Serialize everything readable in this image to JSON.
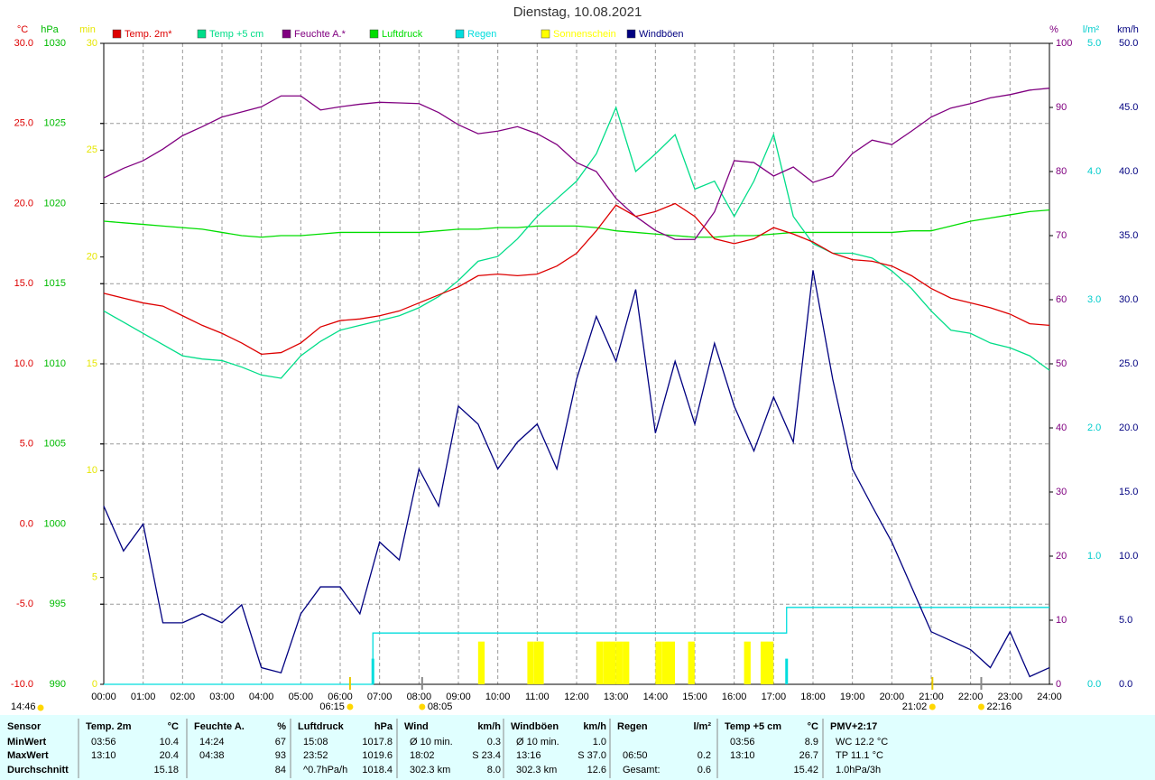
{
  "chart_data": {
    "type": "line",
    "title": "Dienstag, 10.08.2021",
    "xlim": [
      0,
      24
    ],
    "xticks": [
      {
        "value": 0,
        "label": "00:00"
      },
      {
        "value": 1,
        "label": "01:00"
      },
      {
        "value": 2,
        "label": "02:00"
      },
      {
        "value": 3,
        "label": "03:00"
      },
      {
        "value": 4,
        "label": "04:00"
      },
      {
        "value": 5,
        "label": "05:00"
      },
      {
        "value": 6,
        "label": "06:00"
      },
      {
        "value": 7,
        "label": "07:00"
      },
      {
        "value": 8,
        "label": "08:00"
      },
      {
        "value": 9,
        "label": "09:00"
      },
      {
        "value": 10,
        "label": "10:00"
      },
      {
        "value": 11,
        "label": "11:00"
      },
      {
        "value": 12,
        "label": "12:00"
      },
      {
        "value": 13,
        "label": "13:00"
      },
      {
        "value": 14,
        "label": "14:00"
      },
      {
        "value": 15,
        "label": "15:00"
      },
      {
        "value": 16,
        "label": "16:00"
      },
      {
        "value": 17,
        "label": "17:00"
      },
      {
        "value": 18,
        "label": "18:00"
      },
      {
        "value": 19,
        "label": "19:00"
      },
      {
        "value": 20,
        "label": "20:00"
      },
      {
        "value": 21,
        "label": "21:00"
      },
      {
        "value": 22,
        "label": "22:00"
      },
      {
        "value": 23,
        "label": "23:00"
      },
      {
        "value": 24,
        "label": "24:00"
      }
    ],
    "axes": [
      {
        "unit": "°C",
        "side": "left",
        "color": "#dd0000",
        "grid": true,
        "lim": [
          -10,
          30
        ],
        "ticks": [
          {
            "value": -10,
            "label": "-10.0"
          },
          {
            "value": -5,
            "label": "-5.0"
          },
          {
            "value": 0,
            "label": "0.0"
          },
          {
            "value": 5,
            "label": "5.0"
          },
          {
            "value": 10,
            "label": "10.0"
          },
          {
            "value": 15,
            "label": "15.0"
          },
          {
            "value": 20,
            "label": "20.0"
          },
          {
            "value": 25,
            "label": "25.0"
          },
          {
            "value": 30,
            "label": "30.0"
          }
        ]
      },
      {
        "unit": "hPa",
        "side": "left",
        "color": "#00bb00",
        "lim": [
          990,
          1030
        ],
        "ticks": [
          990,
          995,
          1000,
          1005,
          1010,
          1015,
          1020,
          1025,
          1030
        ]
      },
      {
        "unit": "min",
        "side": "left",
        "color": "#e6e600",
        "lim": [
          0,
          30
        ],
        "ticks": [
          0,
          5,
          10,
          15,
          20,
          25,
          30
        ]
      },
      {
        "unit": "%",
        "side": "right",
        "color": "#800080",
        "lim": [
          0,
          100
        ],
        "ticks": [
          0,
          10,
          20,
          30,
          40,
          50,
          60,
          70,
          80,
          90,
          100
        ]
      },
      {
        "unit": "l/m²",
        "side": "right",
        "color": "#00cccc",
        "lim": [
          0,
          5
        ],
        "ticks": [
          {
            "value": 0,
            "label": "0.0"
          },
          {
            "value": 1,
            "label": "1.0"
          },
          {
            "value": 2,
            "label": "2.0"
          },
          {
            "value": 3,
            "label": "3.0"
          },
          {
            "value": 4,
            "label": "4.0"
          },
          {
            "value": 5,
            "label": "5.0"
          }
        ]
      },
      {
        "unit": "km/h",
        "side": "right",
        "color": "#000080",
        "lim": [
          0,
          50
        ],
        "ticks": [
          {
            "value": 0,
            "label": "0.0"
          },
          {
            "value": 5,
            "label": "5.0"
          },
          {
            "value": 10,
            "label": "10.0"
          },
          {
            "value": 15,
            "label": "15.0"
          },
          {
            "value": 20,
            "label": "20.0"
          },
          {
            "value": 25,
            "label": "25.0"
          },
          {
            "value": 30,
            "label": "30.0"
          },
          {
            "value": 35,
            "label": "35.0"
          },
          {
            "value": 40,
            "label": "40.0"
          },
          {
            "value": 45,
            "label": "45.0"
          },
          {
            "value": 50,
            "label": "50.0"
          }
        ]
      }
    ],
    "x": [
      0,
      0.5,
      1,
      1.5,
      2,
      2.5,
      3,
      3.5,
      4,
      4.5,
      5,
      5.5,
      6,
      6.5,
      7,
      7.5,
      8,
      8.5,
      9,
      9.5,
      10,
      10.5,
      11,
      11.5,
      12,
      12.5,
      13,
      13.5,
      14,
      14.5,
      15,
      15.5,
      16,
      16.5,
      17,
      17.5,
      18,
      18.5,
      19,
      19.5,
      20,
      20.5,
      21,
      21.5,
      22,
      22.5,
      23,
      23.5,
      24
    ],
    "series": [
      {
        "name": "Temp. 2m*",
        "color": "#dd0000",
        "axis": "°C",
        "type": "line",
        "values": [
          14.4,
          14.1,
          13.8,
          13.6,
          13.0,
          12.4,
          11.9,
          11.3,
          10.6,
          10.7,
          11.3,
          12.3,
          12.7,
          12.8,
          13.0,
          13.3,
          13.8,
          14.3,
          14.8,
          15.5,
          15.6,
          15.5,
          15.6,
          16.1,
          16.9,
          18.3,
          19.9,
          19.2,
          19.5,
          20.0,
          19.2,
          17.8,
          17.5,
          17.8,
          18.5,
          18.1,
          17.6,
          16.9,
          16.5,
          16.4,
          16.1,
          15.5,
          14.7,
          14.1,
          13.8,
          13.5,
          13.1,
          12.5,
          12.4
        ]
      },
      {
        "name": "Temp +5 cm",
        "color": "#00dd88",
        "axis": "°C",
        "type": "line",
        "values": [
          13.3,
          12.6,
          11.9,
          11.2,
          10.5,
          10.3,
          10.2,
          9.8,
          9.3,
          9.1,
          10.5,
          11.4,
          12.1,
          12.4,
          12.7,
          13.0,
          13.5,
          14.2,
          15.2,
          16.4,
          16.7,
          17.8,
          19.2,
          20.3,
          21.4,
          23.1,
          26.0,
          22.0,
          23.1,
          24.3,
          20.9,
          21.4,
          19.2,
          21.4,
          24.3,
          19.2,
          17.5,
          16.9,
          16.9,
          16.6,
          15.8,
          14.7,
          13.3,
          12.1,
          11.9,
          11.3,
          11.0,
          10.5,
          9.6
        ]
      },
      {
        "name": "Feuchte A.*",
        "color": "#800080",
        "axis": "%",
        "type": "line",
        "values": [
          79.0,
          80.5,
          81.7,
          83.5,
          85.6,
          87.0,
          88.5,
          89.3,
          90.1,
          91.8,
          91.8,
          89.6,
          90.1,
          90.5,
          90.8,
          90.7,
          90.6,
          89.2,
          87.3,
          85.9,
          86.3,
          87.0,
          85.9,
          84.2,
          81.4,
          80.0,
          75.8,
          73.0,
          70.8,
          69.4,
          69.4,
          73.7,
          81.7,
          81.4,
          79.3,
          80.7,
          78.3,
          79.3,
          82.8,
          84.9,
          84.2,
          86.3,
          88.5,
          89.9,
          90.6,
          91.5,
          92.0,
          92.7,
          93.0
        ]
      },
      {
        "name": "Luftdruck",
        "color": "#00dd00",
        "axis": "hPa",
        "type": "line",
        "values": [
          1018.9,
          1018.8,
          1018.7,
          1018.6,
          1018.5,
          1018.4,
          1018.2,
          1018.0,
          1017.9,
          1018.0,
          1018.0,
          1018.1,
          1018.2,
          1018.2,
          1018.2,
          1018.2,
          1018.2,
          1018.3,
          1018.4,
          1018.4,
          1018.5,
          1018.5,
          1018.6,
          1018.6,
          1018.6,
          1018.5,
          1018.3,
          1018.2,
          1018.1,
          1018.0,
          1017.9,
          1017.9,
          1018.0,
          1018.0,
          1018.1,
          1018.2,
          1018.2,
          1018.2,
          1018.2,
          1018.2,
          1018.2,
          1018.3,
          1018.3,
          1018.6,
          1018.9,
          1019.1,
          1019.3,
          1019.5,
          1019.6
        ]
      },
      {
        "name": "Regen",
        "color": "#00dddd",
        "axis": "l/m²",
        "type": "line",
        "x": [
          0,
          6.83,
          6.83,
          17.33,
          17.33,
          24
        ],
        "values": [
          0,
          0,
          0.4,
          0.4,
          0.6,
          0.6
        ],
        "bars": {
          "x": [
            6.83,
            17.33
          ],
          "values": [
            0.2,
            0.2
          ]
        }
      },
      {
        "name": "Sonnenschein",
        "color": "#ffff00",
        "axis": "min",
        "type": "bar",
        "x": [
          9.5,
          10.75,
          10.92,
          11.0,
          12.5,
          12.67,
          12.83,
          13.0,
          13.17,
          14.0,
          14.17,
          14.33,
          14.83,
          16.25,
          16.67,
          16.83
        ],
        "values": [
          2,
          2,
          2,
          2,
          2,
          2,
          2,
          2,
          2,
          2,
          2,
          2,
          2,
          2,
          2,
          2
        ]
      },
      {
        "name": "Windböen",
        "color": "#000080",
        "axis": "km/h",
        "type": "line",
        "values": [
          13.9,
          10.4,
          12.5,
          4.8,
          4.8,
          5.5,
          4.8,
          6.2,
          1.3,
          0.9,
          5.5,
          7.6,
          7.6,
          5.5,
          11.1,
          9.7,
          16.8,
          13.9,
          21.7,
          20.3,
          16.8,
          18.9,
          20.3,
          16.8,
          23.8,
          28.7,
          25.2,
          30.8,
          19.6,
          25.2,
          20.3,
          26.6,
          21.7,
          18.2,
          22.4,
          18.9,
          32.3,
          23.8,
          16.8,
          13.9,
          11.1,
          7.6,
          4.1,
          3.4,
          2.7,
          1.3,
          4.1,
          0.6,
          1.3
        ]
      }
    ],
    "markers": [
      {
        "x": 6.25,
        "label": "06:15"
      },
      {
        "x": 8.08,
        "label": "08:05"
      },
      {
        "x": 21.03,
        "label": "21:02"
      },
      {
        "x": 22.27,
        "label": "22:16"
      }
    ],
    "annotation": "14:46"
  },
  "table": {
    "header": [
      {
        "label": "Sensor"
      },
      {
        "label": "Temp. 2m",
        "unit": "°C"
      },
      {
        "label": "Feuchte A.",
        "unit": "%"
      },
      {
        "label": "Luftdruck",
        "unit": "hPa"
      },
      {
        "label": "Wind",
        "unit": "km/h"
      },
      {
        "label": "Windböen",
        "unit": "km/h"
      },
      {
        "label": "Regen",
        "unit": "l/m²"
      },
      {
        "label": "Temp +5 cm",
        "unit": "°C"
      },
      {
        "label": "PMV+2:17"
      }
    ],
    "rows": [
      {
        "name": "MinWert",
        "cells": [
          {
            "left": "03:56",
            "right": "10.4"
          },
          {
            "left": "14:24",
            "right": "67"
          },
          {
            "left": "15:08",
            "right": "1017.8"
          },
          {
            "left": "Ø 10 min.",
            "right": "0.3"
          },
          {
            "left": "Ø 10 min.",
            "right": "1.0"
          },
          {},
          {
            "left": "03:56",
            "right": "8.9"
          },
          {
            "left": "WC 12.2 °C"
          }
        ]
      },
      {
        "name": "MaxWert",
        "cells": [
          {
            "left": "13:10",
            "right": "20.4"
          },
          {
            "left": "04:38",
            "right": "93"
          },
          {
            "left": "23:52",
            "right": "1019.6"
          },
          {
            "left": "18:02",
            "right": "S 23.4"
          },
          {
            "left": "13:16",
            "right": "S 37.0"
          },
          {
            "left": "06:50",
            "right": "0.2"
          },
          {
            "left": "13:10",
            "right": "26.7"
          },
          {
            "left": "TP 11.1 °C"
          }
        ]
      },
      {
        "name": "Durchschnitt",
        "cells": [
          {
            "right": "15.18"
          },
          {
            "right": "84"
          },
          {
            "left": "^0.7hPa/h",
            "right": "1018.4"
          },
          {
            "left": "302.3 km",
            "right": "8.0"
          },
          {
            "left": "302.3 km",
            "right": "12.6"
          },
          {
            "left": "Gesamt:",
            "right": "0.6"
          },
          {
            "right": "15.42"
          },
          {
            "left": "1.0hPa/3h"
          }
        ]
      }
    ]
  }
}
